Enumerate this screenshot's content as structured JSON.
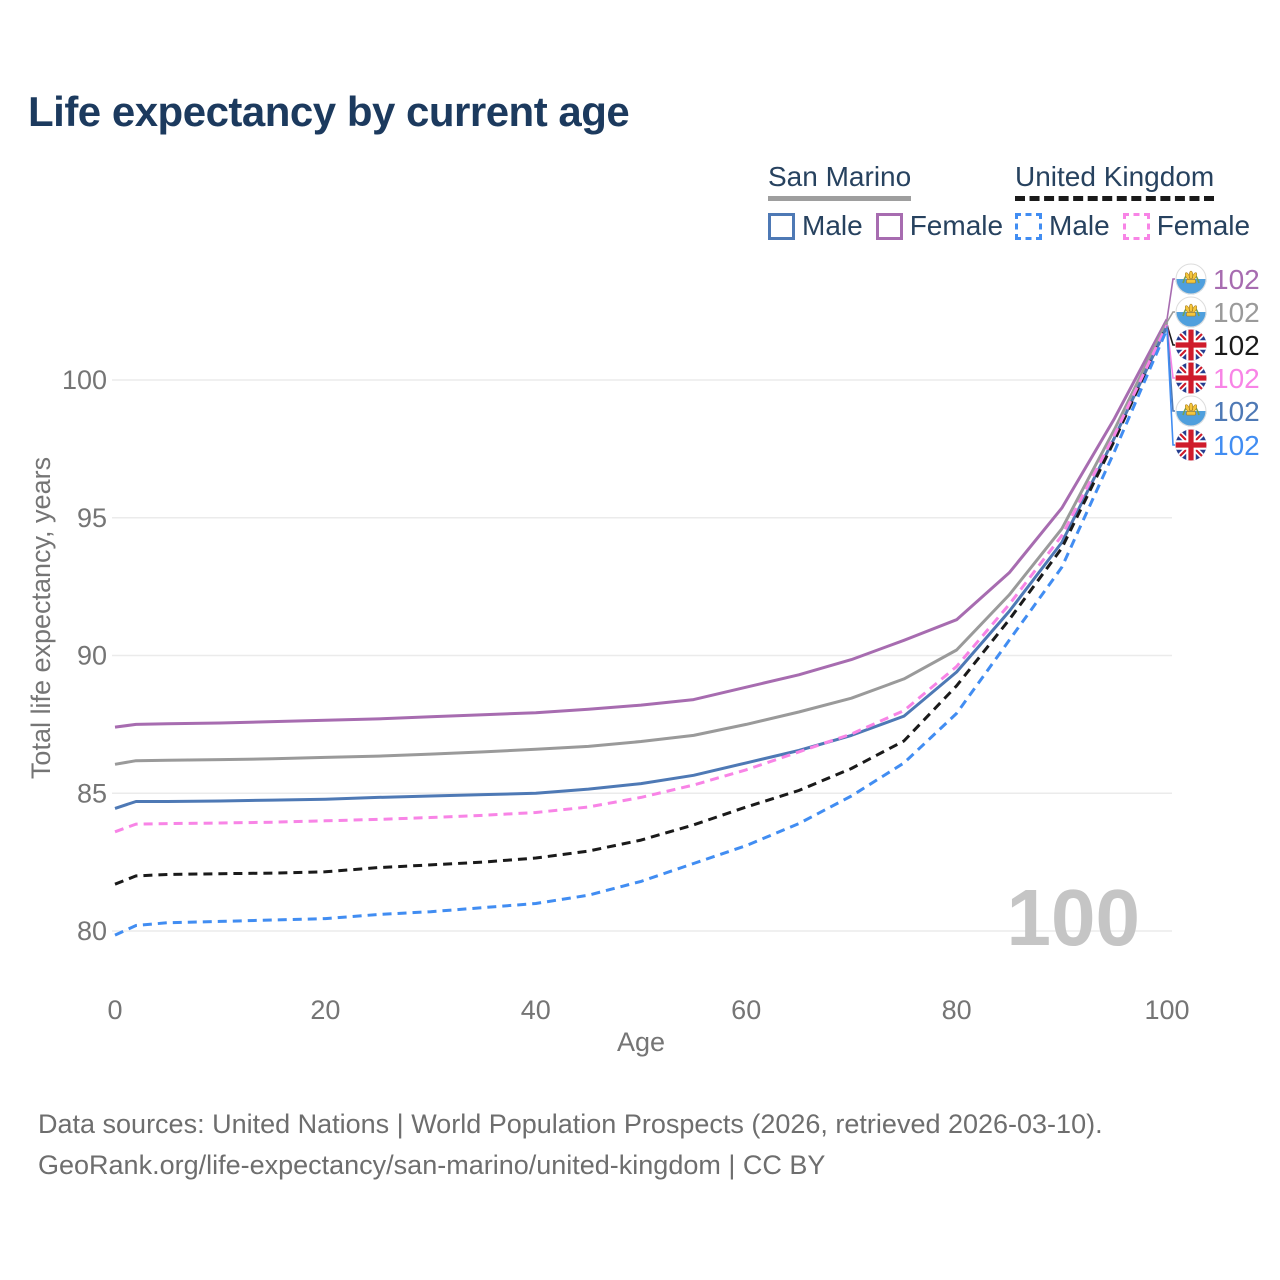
{
  "header": {
    "title": "Life expectancy by current age"
  },
  "legend": {
    "groups": [
      {
        "name": "San Marino",
        "underline_style": "solid",
        "underline_color": "#9e9e9e",
        "items": [
          {
            "label": "Male",
            "color": "#4e79b5",
            "dashed": false
          },
          {
            "label": "Female",
            "color": "#a76cb0",
            "dashed": false
          }
        ]
      },
      {
        "name": "United Kingdom",
        "underline_style": "dashed",
        "underline_color": "#1a1a1a",
        "items": [
          {
            "label": "Male",
            "color": "#418df2",
            "dashed": true
          },
          {
            "label": "Female",
            "color": "#f884e6",
            "dashed": true
          }
        ]
      }
    ]
  },
  "chart_data": {
    "type": "line",
    "title": "Life expectancy by current age",
    "xlabel": "Age",
    "ylabel": "Total life expectancy, years",
    "x_ticks": [
      0,
      20,
      40,
      60,
      80,
      100
    ],
    "y_ticks": [
      80,
      85,
      90,
      95,
      100
    ],
    "xlim": [
      0,
      100
    ],
    "ylim": [
      79.5,
      102.7
    ],
    "grid": "horizontal",
    "grid_color": "#ebebeb",
    "tick_color": "#757575",
    "watermark": "100",
    "watermark_color": "#c5c5c5",
    "ages": [
      0,
      2,
      5,
      10,
      15,
      20,
      25,
      30,
      35,
      40,
      45,
      50,
      55,
      60,
      65,
      70,
      75,
      80,
      85,
      90,
      95,
      100
    ],
    "series": [
      {
        "name": "San Marino Female",
        "country": "San Marino",
        "sex": "Female",
        "color": "#a76cb0",
        "dash": "solid",
        "flag": "san-marino",
        "end_label": "102",
        "values": [
          87.4,
          87.5,
          87.52,
          87.55,
          87.6,
          87.65,
          87.7,
          87.78,
          87.85,
          87.92,
          88.05,
          88.2,
          88.4,
          88.85,
          89.3,
          89.85,
          90.55,
          91.3,
          93.0,
          95.35,
          98.6,
          102.2
        ]
      },
      {
        "name": "San Marino All",
        "country": "San Marino",
        "sex": "All",
        "color": "#9a9a9a",
        "dash": "solid",
        "flag": "san-marino",
        "end_label": "102",
        "values": [
          86.05,
          86.18,
          86.2,
          86.22,
          86.25,
          86.3,
          86.35,
          86.42,
          86.5,
          86.6,
          86.7,
          86.88,
          87.1,
          87.5,
          87.95,
          88.45,
          89.15,
          90.2,
          92.2,
          94.6,
          98.2,
          102.1
        ]
      },
      {
        "name": "San Marino Male",
        "country": "San Marino",
        "sex": "Male",
        "color": "#4e79b5",
        "dash": "solid",
        "flag": "san-marino",
        "end_label": "102",
        "values": [
          84.45,
          84.7,
          84.7,
          84.72,
          84.75,
          84.78,
          84.85,
          84.9,
          84.95,
          85.0,
          85.15,
          85.35,
          85.65,
          86.1,
          86.55,
          87.1,
          87.8,
          89.4,
          91.6,
          94.1,
          97.9,
          101.95
        ]
      },
      {
        "name": "United Kingdom All",
        "country": "United Kingdom",
        "sex": "All",
        "color": "#1a1a1a",
        "dash": "dashed",
        "flag": "united-kingdom",
        "end_label": "102",
        "values": [
          81.7,
          82.0,
          82.05,
          82.08,
          82.1,
          82.15,
          82.3,
          82.4,
          82.5,
          82.65,
          82.9,
          83.3,
          83.85,
          84.5,
          85.1,
          85.9,
          86.9,
          88.9,
          91.3,
          93.9,
          97.8,
          102.0
        ]
      },
      {
        "name": "United Kingdom Female",
        "country": "United Kingdom",
        "sex": "Female",
        "color": "#f884e6",
        "dash": "dashed",
        "flag": "united-kingdom",
        "end_label": "102",
        "values": [
          83.6,
          83.88,
          83.9,
          83.92,
          83.95,
          84.0,
          84.05,
          84.12,
          84.2,
          84.3,
          84.5,
          84.85,
          85.3,
          85.85,
          86.5,
          87.15,
          88.0,
          89.6,
          91.85,
          94.35,
          98.0,
          102.0
        ]
      },
      {
        "name": "United Kingdom Male",
        "country": "United Kingdom",
        "sex": "Male",
        "color": "#418df2",
        "dash": "dashed",
        "flag": "united-kingdom",
        "end_label": "102",
        "values": [
          79.85,
          80.2,
          80.3,
          80.35,
          80.4,
          80.45,
          80.6,
          80.7,
          80.85,
          81.0,
          81.3,
          81.8,
          82.45,
          83.1,
          83.9,
          84.9,
          86.1,
          87.9,
          90.55,
          93.2,
          97.4,
          101.85
        ]
      }
    ],
    "end_label_order": [
      "San Marino Female",
      "San Marino All",
      "United Kingdom All",
      "United Kingdom Female",
      "San Marino Male",
      "United Kingdom Male"
    ]
  },
  "footer": {
    "line1": "Data sources: United Nations | World Population Prospects (2026, retrieved 2026-03-10).",
    "line2": "GeoRank.org/life-expectancy/san-marino/united-kingdom | CC BY"
  }
}
